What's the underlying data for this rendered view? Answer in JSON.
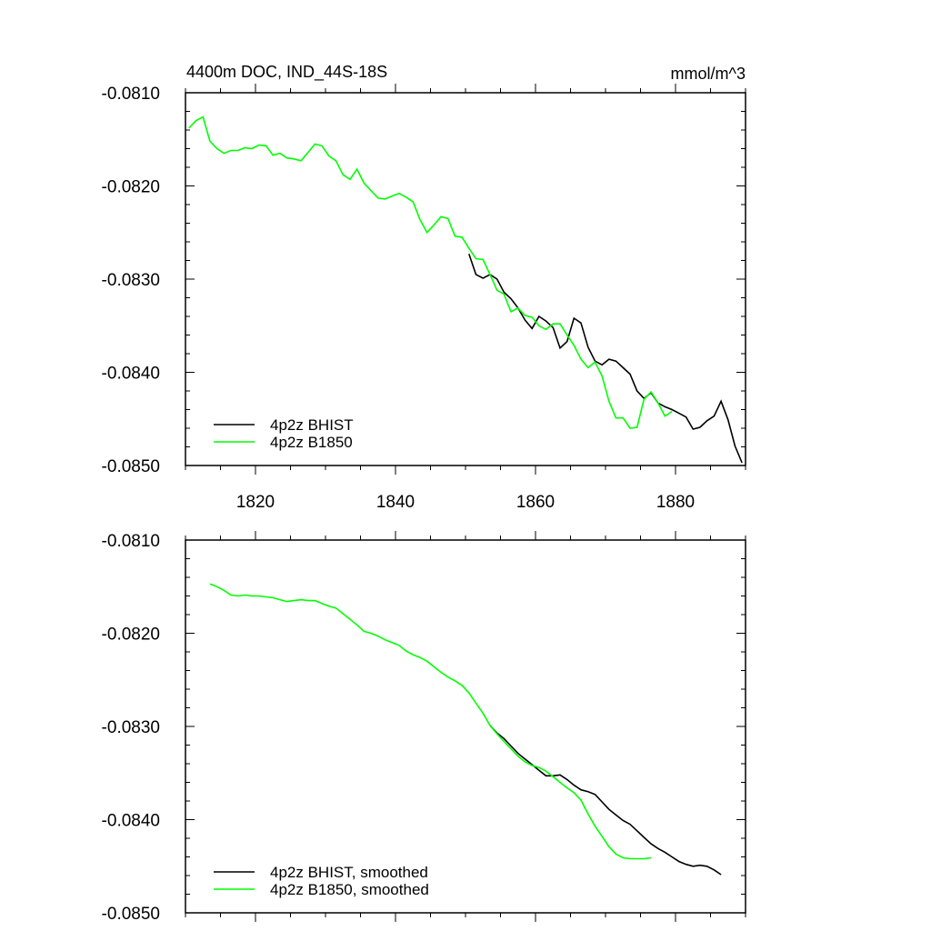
{
  "title_left": "4400m DOC, IND_44S-18S",
  "title_right": "mmol/m^3",
  "colors": {
    "BHIST": "#000000",
    "B1850": "#00ff00"
  },
  "chart_data": [
    {
      "type": "line",
      "title": "4400m DOC, IND_44S-18S",
      "units": "mmol/m^3",
      "xlim": [
        1810,
        1890
      ],
      "ylim": [
        -0.085,
        -0.081
      ],
      "x_ticks": [
        1820,
        1840,
        1860,
        1880
      ],
      "x_tick_labels": [
        "1820",
        "1840",
        "1860",
        "1880"
      ],
      "y_ticks": [
        -0.081,
        -0.082,
        -0.083,
        -0.084,
        -0.085
      ],
      "y_tick_labels": [
        "-0.0810",
        "-0.0820",
        "-0.0830",
        "-0.0840",
        "-0.0850"
      ],
      "grid": false,
      "legend_position": "bottom-left",
      "series": [
        {
          "name": "4p2z BHIST",
          "color": "#000000",
          "x_start": 1850.5,
          "values": [
            -0.08273,
            -0.08295,
            -0.08299,
            -0.08295,
            -0.083,
            -0.08314,
            -0.08321,
            -0.08331,
            -0.08344,
            -0.08353,
            -0.0834,
            -0.08345,
            -0.08352,
            -0.08374,
            -0.08367,
            -0.08342,
            -0.08347,
            -0.08373,
            -0.08388,
            -0.08392,
            -0.08386,
            -0.08388,
            -0.08395,
            -0.08402,
            -0.0842,
            -0.08428,
            -0.08422,
            -0.08433,
            -0.08437,
            -0.0844,
            -0.08444,
            -0.08448,
            -0.08461,
            -0.08459,
            -0.08452,
            -0.08447,
            -0.08431,
            -0.08451,
            -0.08479,
            -0.08497
          ]
        },
        {
          "name": "4p2z B1850",
          "color": "#00ff00",
          "x_start": 1810.5,
          "values": [
            -0.08138,
            -0.0813,
            -0.08126,
            -0.08152,
            -0.0816,
            -0.08165,
            -0.08162,
            -0.08162,
            -0.08159,
            -0.0816,
            -0.08156,
            -0.08157,
            -0.08167,
            -0.08165,
            -0.0817,
            -0.08171,
            -0.08173,
            -0.08164,
            -0.08155,
            -0.08157,
            -0.08168,
            -0.08173,
            -0.08188,
            -0.08193,
            -0.08182,
            -0.08197,
            -0.08205,
            -0.08213,
            -0.08214,
            -0.08211,
            -0.08208,
            -0.08212,
            -0.08217,
            -0.08236,
            -0.0825,
            -0.08242,
            -0.08233,
            -0.08235,
            -0.08254,
            -0.08255,
            -0.08267,
            -0.08278,
            -0.08279,
            -0.08295,
            -0.08312,
            -0.08316,
            -0.08335,
            -0.08331,
            -0.08339,
            -0.08341,
            -0.0835,
            -0.08354,
            -0.08348,
            -0.08348,
            -0.0836,
            -0.08371,
            -0.08386,
            -0.08395,
            -0.08389,
            -0.08404,
            -0.08431,
            -0.08449,
            -0.08449,
            -0.0846,
            -0.08459,
            -0.08429,
            -0.08421,
            -0.08433,
            -0.08447,
            -0.08442
          ]
        }
      ]
    },
    {
      "type": "line",
      "xlim": [
        1810,
        1890
      ],
      "ylim": [
        -0.085,
        -0.081
      ],
      "x_ticks": [
        1820,
        1840,
        1860,
        1880
      ],
      "y_ticks": [
        -0.081,
        -0.082,
        -0.083,
        -0.084,
        -0.085
      ],
      "y_tick_labels": [
        "-0.0810",
        "-0.0820",
        "-0.0830",
        "-0.0840",
        "-0.0850"
      ],
      "grid": false,
      "legend_position": "bottom-left",
      "series": [
        {
          "name": "4p2z BHIST, smoothed",
          "color": "#000000",
          "x_start": 1853.5,
          "values": [
            -0.08299,
            -0.08307,
            -0.08313,
            -0.08321,
            -0.08329,
            -0.08335,
            -0.08341,
            -0.08347,
            -0.08353,
            -0.08353,
            -0.08352,
            -0.08357,
            -0.08363,
            -0.08368,
            -0.0837,
            -0.08373,
            -0.08381,
            -0.08389,
            -0.08395,
            -0.08401,
            -0.08405,
            -0.08412,
            -0.08419,
            -0.08426,
            -0.08431,
            -0.08435,
            -0.0844,
            -0.08445,
            -0.08448,
            -0.0845,
            -0.08449,
            -0.0845,
            -0.08454,
            -0.08459
          ]
        },
        {
          "name": "4p2z B1850, smoothed",
          "color": "#00ff00",
          "x_start": 1813.5,
          "values": [
            -0.08147,
            -0.0815,
            -0.08154,
            -0.08159,
            -0.0816,
            -0.08159,
            -0.0816,
            -0.0816,
            -0.08161,
            -0.08162,
            -0.08164,
            -0.08166,
            -0.08165,
            -0.08164,
            -0.08165,
            -0.08165,
            -0.08168,
            -0.08171,
            -0.08173,
            -0.08179,
            -0.08185,
            -0.08191,
            -0.08198,
            -0.082,
            -0.08203,
            -0.08207,
            -0.0821,
            -0.08213,
            -0.08219,
            -0.08223,
            -0.08226,
            -0.0823,
            -0.08236,
            -0.08242,
            -0.08247,
            -0.08251,
            -0.08256,
            -0.08264,
            -0.08275,
            -0.08286,
            -0.08299,
            -0.08308,
            -0.08316,
            -0.08324,
            -0.08332,
            -0.08338,
            -0.08342,
            -0.08344,
            -0.08348,
            -0.08354,
            -0.0836,
            -0.08366,
            -0.08371,
            -0.08379,
            -0.08394,
            -0.08407,
            -0.08418,
            -0.08429,
            -0.08437,
            -0.08441,
            -0.08442,
            -0.08442,
            -0.08442,
            -0.08441
          ]
        }
      ]
    }
  ]
}
